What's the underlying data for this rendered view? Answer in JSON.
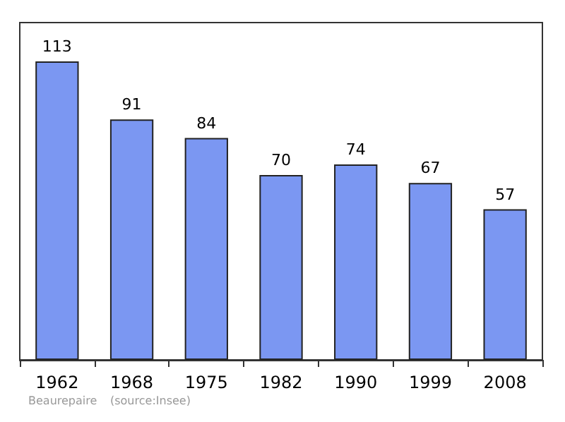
{
  "chart_data": {
    "type": "bar",
    "categories": [
      "1962",
      "1968",
      "1975",
      "1982",
      "1990",
      "1999",
      "2008"
    ],
    "values": [
      113,
      91,
      84,
      70,
      74,
      67,
      57
    ],
    "color": "#7b97f2",
    "data_labels": true,
    "annotations": [
      "Beaurepaire",
      "(source:Insee)"
    ]
  }
}
